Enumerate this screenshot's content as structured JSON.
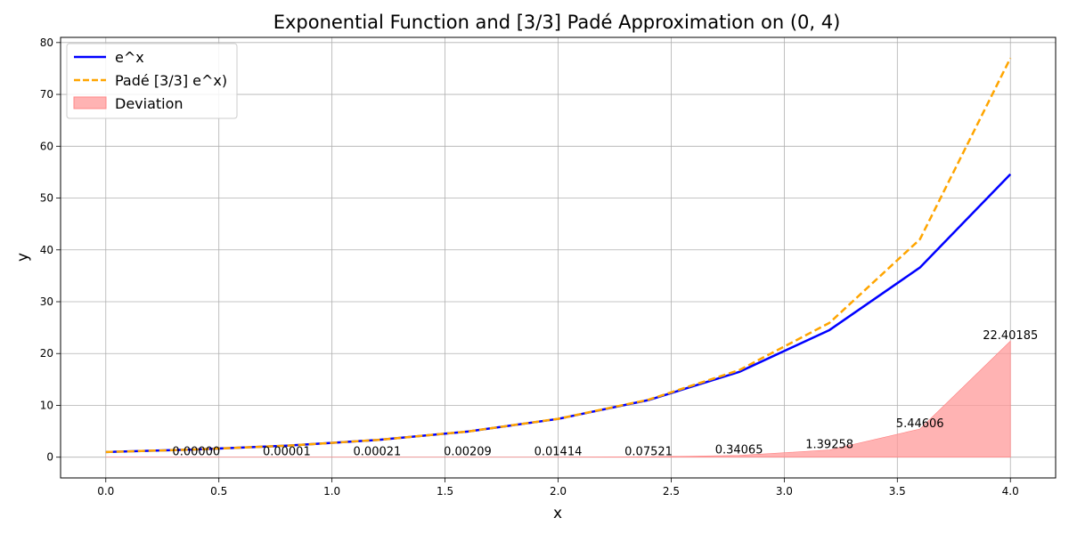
{
  "chart_data": {
    "type": "line",
    "title": "Exponential Function and [3/3] Padé Approximation on (0, 4)",
    "xlabel": "x",
    "ylabel": "y",
    "xlim": [
      -0.2,
      4.2
    ],
    "ylim": [
      -4,
      81
    ],
    "xticks": [
      0.0,
      0.5,
      1.0,
      1.5,
      2.0,
      2.5,
      3.0,
      3.5,
      4.0
    ],
    "xtick_labels": [
      "0.0",
      "0.5",
      "1.0",
      "1.5",
      "2.0",
      "2.5",
      "3.0",
      "3.5",
      "4.0"
    ],
    "yticks": [
      0,
      10,
      20,
      30,
      40,
      50,
      60,
      70,
      80
    ],
    "ytick_labels": [
      "0",
      "10",
      "20",
      "30",
      "40",
      "50",
      "60",
      "70",
      "80"
    ],
    "grid": true,
    "legend_position": "top-left",
    "x": [
      0.0,
      0.4,
      0.8,
      1.2,
      1.6,
      2.0,
      2.4,
      2.8,
      3.2,
      3.6,
      4.0
    ],
    "series": [
      {
        "name": "e^x",
        "style": "solid",
        "color": "#0000ff",
        "values": [
          1.0,
          1.49182,
          2.22554,
          3.32012,
          4.95303,
          7.38906,
          11.02318,
          16.44465,
          24.53253,
          36.59823,
          54.59815
        ]
      },
      {
        "name": "Padé [3/3] e^x)",
        "style": "dashed",
        "color": "#ffa500",
        "values": [
          1.0,
          1.49182,
          2.22555,
          3.32033,
          4.95512,
          7.4032,
          11.09839,
          16.7853,
          25.92511,
          42.04429,
          77.0
        ]
      },
      {
        "name": "Deviation",
        "style": "fill",
        "color": "#ff9999",
        "values": [
          0.0,
          0.0,
          1e-05,
          0.00021,
          0.00209,
          0.01414,
          0.07521,
          0.34065,
          1.39258,
          5.44606,
          22.40185
        ]
      }
    ],
    "annotations": [
      {
        "x": 0.4,
        "label": "0.00000"
      },
      {
        "x": 0.8,
        "label": "0.00001"
      },
      {
        "x": 1.2,
        "label": "0.00021"
      },
      {
        "x": 1.6,
        "label": "0.00209"
      },
      {
        "x": 2.0,
        "label": "0.01414"
      },
      {
        "x": 2.4,
        "label": "0.07521"
      },
      {
        "x": 2.8,
        "label": "0.34065"
      },
      {
        "x": 3.2,
        "label": "1.39258"
      },
      {
        "x": 3.6,
        "label": "5.44606"
      },
      {
        "x": 4.0,
        "label": "22.40185"
      }
    ]
  }
}
